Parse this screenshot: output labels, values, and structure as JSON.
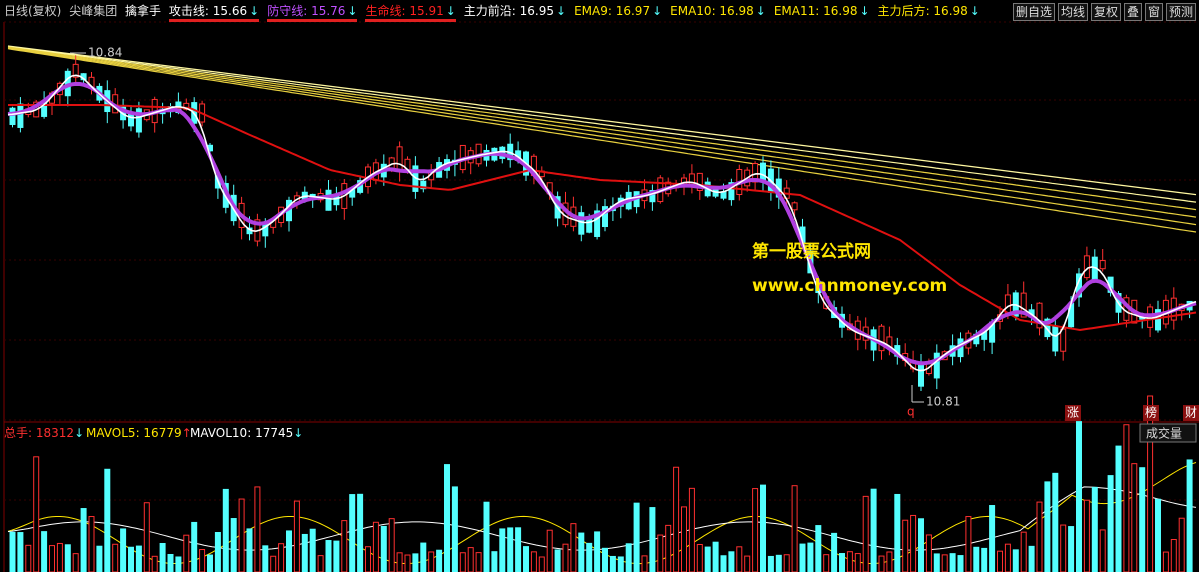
{
  "header": {
    "period": "日线(复权)",
    "stock": "尖峰集团",
    "formula": "擒拿手"
  },
  "indicators": [
    {
      "label": "攻击线",
      "value": "15.66",
      "arrow": "↓",
      "color": "#ffffff",
      "underline": true
    },
    {
      "label": "防守线",
      "value": "15.76",
      "arrow": "↓",
      "color": "#c050ff",
      "underline": true
    },
    {
      "label": "生命线",
      "value": "15.91",
      "arrow": "↓",
      "color": "#ff2020",
      "underline": true
    },
    {
      "label": "主力前沿",
      "value": "16.95",
      "arrow": "↓",
      "color": "#ffffff",
      "underline": false
    },
    {
      "label": "EMA9",
      "value": "16.97",
      "arrow": "↓",
      "color": "#ffe600",
      "underline": false
    },
    {
      "label": "EMA10",
      "value": "16.98",
      "arrow": "↓",
      "color": "#ffe600",
      "underline": false
    },
    {
      "label": "EMA11",
      "value": "16.98",
      "arrow": "↓",
      "color": "#ffe600",
      "underline": false
    },
    {
      "label": "主力后方",
      "value": "16.98",
      "arrow": "↓",
      "color": "#ffe600",
      "underline": false
    }
  ],
  "buttons": [
    "删自选",
    "均线",
    "复权",
    "叠",
    "窗",
    "预测"
  ],
  "annotations": {
    "high": "10.84",
    "low": "10.81",
    "marker": "q",
    "tags": [
      "涨",
      "榜",
      "财"
    ]
  },
  "watermark": {
    "title": "第一股票公式网",
    "url": "www.chnmoney.com"
  },
  "volume_legend": [
    {
      "label": "总手",
      "value": "18312",
      "arrow": "↓"
    },
    {
      "label": "MAVOL5",
      "value": "16779",
      "arrow": "↑"
    },
    {
      "label": "MAVOL10",
      "value": "17745",
      "arrow": "↓"
    }
  ],
  "volume_button": "成交量"
}
